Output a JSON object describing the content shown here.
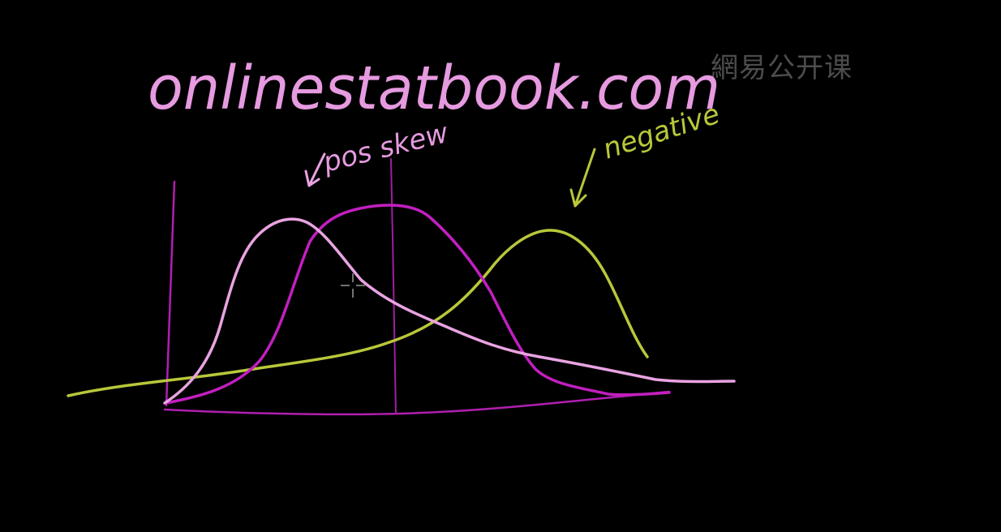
{
  "board": {
    "title": "onlinestatbook.com",
    "watermark": "網易公开课"
  },
  "annotations": {
    "positive": "pos skew",
    "negative": "negative"
  },
  "colors": {
    "background": "#000000",
    "pink": "#e9a3e2",
    "magenta": "#c21fc0",
    "green": "#b9c73a",
    "axis": "#b01fb0",
    "title": "#e69ae0"
  }
}
